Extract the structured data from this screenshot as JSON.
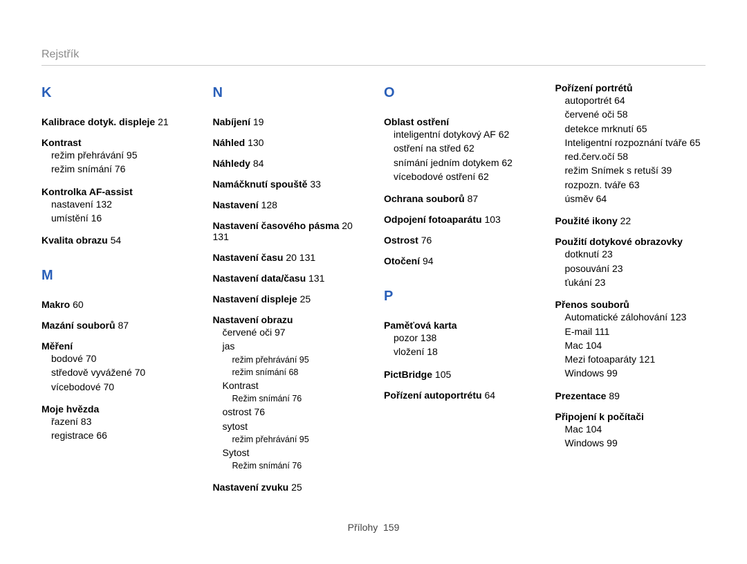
{
  "header": {
    "title": "Rejstřík"
  },
  "footer": {
    "label": "Přílohy",
    "page": "159"
  },
  "columns": [
    {
      "groups": [
        {
          "letter": "K",
          "entries": [
            {
              "term": "Kalibrace dotyk. displeje",
              "page": "21"
            },
            {
              "term": "Kontrast",
              "subs": [
                {
                  "t": "režim přehrávání",
                  "p": "95"
                },
                {
                  "t": "režim snímání",
                  "p": "76"
                }
              ]
            },
            {
              "term": "Kontrolka AF-assist",
              "subs": [
                {
                  "t": "nastavení",
                  "p": "132"
                },
                {
                  "t": "umístění",
                  "p": "16"
                }
              ]
            },
            {
              "term": "Kvalita obrazu",
              "page": "54"
            }
          ]
        },
        {
          "letter": "M",
          "entries": [
            {
              "term": "Makro",
              "page": "60"
            },
            {
              "term": "Mazání souborů",
              "page": "87"
            },
            {
              "term": "Měření",
              "subs": [
                {
                  "t": "bodové",
                  "p": "70"
                },
                {
                  "t": "středově vyvážené",
                  "p": "70"
                },
                {
                  "t": "vícebodové",
                  "p": "70"
                }
              ]
            },
            {
              "term": "Moje hvězda",
              "subs": [
                {
                  "t": "řazení",
                  "p": "83"
                },
                {
                  "t": "registrace",
                  "p": "66"
                }
              ]
            }
          ]
        }
      ]
    },
    {
      "groups": [
        {
          "letter": "N",
          "entries": [
            {
              "term": "Nabíjení",
              "page": "19"
            },
            {
              "term": "Náhled",
              "page": "130"
            },
            {
              "term": "Náhledy",
              "page": "84"
            },
            {
              "term": "Namáčknutí spouště",
              "page": "33"
            },
            {
              "term": "Nastavení",
              "page": "128"
            },
            {
              "term": "Nastavení časového pásma",
              "page": "20  131"
            },
            {
              "term": "Nastavení času",
              "page": "20  131"
            },
            {
              "term": "Nastavení data/času",
              "page": "131"
            },
            {
              "term": "Nastavení displeje",
              "page": "25"
            },
            {
              "term": "Nastavení obrazu",
              "subs": [
                {
                  "t": "červené oči",
                  "p": "97"
                },
                {
                  "t": "jas",
                  "subs2": [
                    {
                      "t": "režim přehrávání",
                      "p": "95"
                    },
                    {
                      "t": "režim snímání",
                      "p": "68"
                    }
                  ]
                },
                {
                  "t": "Kontrast",
                  "subs2": [
                    {
                      "t": "Režim snímání",
                      "p": "76"
                    }
                  ]
                },
                {
                  "t": "ostrost",
                  "p": "76"
                },
                {
                  "t": "sytost",
                  "subs2": [
                    {
                      "t": "režim přehrávání",
                      "p": "95"
                    }
                  ]
                },
                {
                  "t": "Sytost",
                  "subs2": [
                    {
                      "t": "Režim snímání",
                      "p": "76"
                    }
                  ]
                }
              ]
            },
            {
              "term": "Nastavení zvuku",
              "page": "25"
            }
          ]
        }
      ]
    },
    {
      "groups": [
        {
          "letter": "O",
          "entries": [
            {
              "term": "Oblast ostření",
              "subs": [
                {
                  "t": "inteligentní dotykový AF",
                  "p": "62"
                },
                {
                  "t": "ostření na střed",
                  "p": "62"
                },
                {
                  "t": "snímání jedním dotykem",
                  "p": "62"
                },
                {
                  "t": "vícebodové ostření",
                  "p": "62"
                }
              ]
            },
            {
              "term": "Ochrana souborů",
              "page": "87"
            },
            {
              "term": "Odpojení fotoaparátu",
              "page": "103"
            },
            {
              "term": "Ostrost",
              "page": "76"
            },
            {
              "term": "Otočení",
              "page": "94"
            }
          ]
        },
        {
          "letter": "P",
          "entries": [
            {
              "term": "Paměťová karta",
              "subs": [
                {
                  "t": "pozor",
                  "p": "138"
                },
                {
                  "t": "vložení",
                  "p": "18"
                }
              ]
            },
            {
              "term": "PictBridge",
              "page": "105"
            },
            {
              "term": "Pořízení autoportrétu",
              "page": "64"
            }
          ]
        }
      ]
    },
    {
      "groups": [
        {
          "letter": "",
          "entries": [
            {
              "term": "Pořízení portrétů",
              "subs": [
                {
                  "t": "autoportrét",
                  "p": "64"
                },
                {
                  "t": "červené oči",
                  "p": "58"
                },
                {
                  "t": "detekce mrknutí",
                  "p": "65"
                },
                {
                  "t": "Inteligentní rozpoznání tváře",
                  "p": "65"
                },
                {
                  "t": "red.červ.očí",
                  "p": "58"
                },
                {
                  "t": "režim Snímek s retuší",
                  "p": "39"
                },
                {
                  "t": "rozpozn. tváře",
                  "p": "63"
                },
                {
                  "t": "úsměv",
                  "p": "64"
                }
              ]
            },
            {
              "term": "Použité ikony",
              "page": "22"
            },
            {
              "term": "Použití dotykové obrazovky",
              "subs": [
                {
                  "t": "dotknutí",
                  "p": "23"
                },
                {
                  "t": "posouvání",
                  "p": "23"
                },
                {
                  "t": "ťukání",
                  "p": "23"
                }
              ]
            },
            {
              "term": "Přenos souborů",
              "subs": [
                {
                  "t": "Automatické zálohování",
                  "p": "123"
                },
                {
                  "t": "E-mail",
                  "p": "111"
                },
                {
                  "t": "Mac",
                  "p": "104"
                },
                {
                  "t": "Mezi fotoaparáty",
                  "p": "121"
                },
                {
                  "t": "Windows",
                  "p": "99"
                }
              ]
            },
            {
              "term": "Prezentace",
              "page": "89"
            },
            {
              "term": "Připojení k počítači",
              "subs": [
                {
                  "t": "Mac",
                  "p": "104"
                },
                {
                  "t": "Windows",
                  "p": "99"
                }
              ]
            }
          ]
        }
      ]
    }
  ]
}
